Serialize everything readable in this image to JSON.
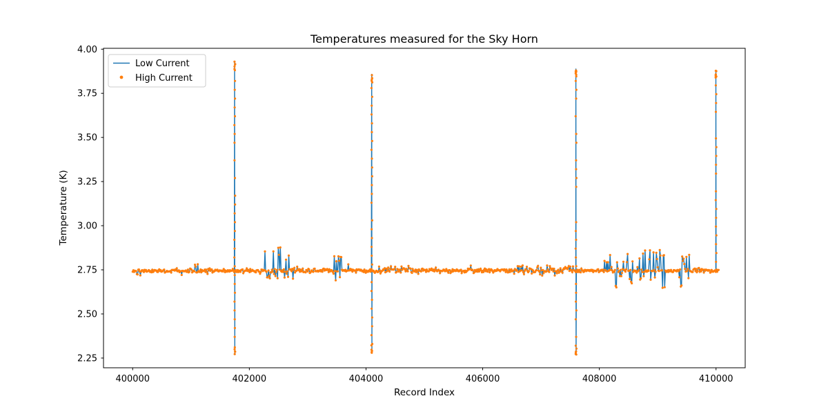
{
  "figure": {
    "title": "Temperatures measured for the Sky Horn",
    "xlabel": "Record Index",
    "ylabel": "Temperature (K)"
  },
  "legend": {
    "items": [
      {
        "label": "Low Current",
        "color": "#1f77b4",
        "marker": "line"
      },
      {
        "label": "High Current",
        "color": "#ff7f0e",
        "marker": "dot"
      }
    ]
  },
  "chart_data": {
    "type": "line",
    "title": "Temperatures measured for the Sky Horn",
    "xlabel": "Record Index",
    "ylabel": "Temperature (K)",
    "xlim": [
      399500,
      410500
    ],
    "ylim": [
      2.195,
      4.005
    ],
    "xticks": [
      400000,
      402000,
      404000,
      406000,
      408000,
      410000
    ],
    "yticks": [
      2.25,
      2.5,
      2.75,
      3.0,
      3.25,
      3.5,
      3.75,
      4.0
    ],
    "grid": false,
    "legend_position": "upper left",
    "series": [
      {
        "name": "Low Current",
        "type": "line",
        "color": "#1f77b4"
      },
      {
        "name": "High Current",
        "type": "scatter",
        "color": "#ff7f0e"
      }
    ],
    "baseline": {
      "x_start": 400000,
      "x_end": 410050,
      "value": 2.745,
      "noise": 0.006
    },
    "spikes": [
      {
        "x": 401750,
        "high": 3.93,
        "low": 2.27
      },
      {
        "x": 404100,
        "high": 3.86,
        "low": 2.28
      },
      {
        "x": 407600,
        "high": 3.89,
        "low": 2.27
      },
      {
        "x": 410000,
        "high": 3.88,
        "low": 2.745
      }
    ],
    "bumps": [
      {
        "x_start": 401050,
        "x_end": 401150,
        "amp_up": 0.045,
        "amp_down": 0.01
      },
      {
        "x_start": 402250,
        "x_end": 402750,
        "amp_up": 0.14,
        "amp_down": 0.06
      },
      {
        "x_start": 403400,
        "x_end": 403700,
        "amp_up": 0.09,
        "amp_down": 0.055
      },
      {
        "x_start": 404200,
        "x_end": 404900,
        "amp_up": 0.03,
        "amp_down": 0.02
      },
      {
        "x_start": 406600,
        "x_end": 407550,
        "amp_up": 0.03,
        "amp_down": 0.03
      },
      {
        "x_start": 408050,
        "x_end": 409150,
        "amp_up": 0.12,
        "amp_down": 0.1
      },
      {
        "x_start": 409350,
        "x_end": 409550,
        "amp_up": 0.11,
        "amp_down": 0.1
      }
    ]
  }
}
